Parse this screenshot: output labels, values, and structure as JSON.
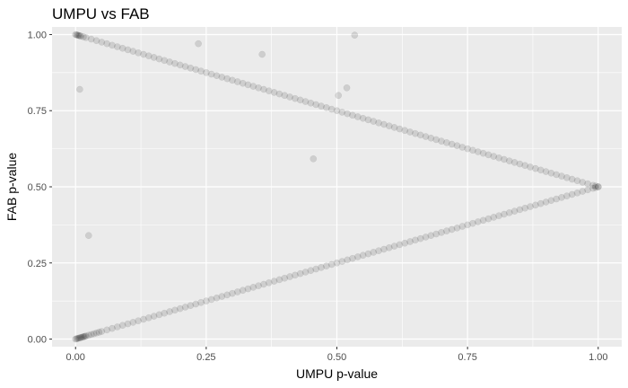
{
  "chart_data": {
    "type": "scatter",
    "title": "UMPU vs FAB",
    "xlabel": "UMPU p-value",
    "ylabel": "FAB p-value",
    "xlim": [
      -0.045,
      1.045
    ],
    "ylim": [
      -0.025,
      1.025
    ],
    "x_ticks": [
      "0.00",
      "0.25",
      "0.50",
      "0.75",
      "1.00"
    ],
    "y_ticks": [
      "0.00",
      "0.25",
      "0.50",
      "0.75",
      "1.00"
    ],
    "x_tick_values": [
      0,
      0.25,
      0.5,
      0.75,
      1.0
    ],
    "y_tick_values": [
      0,
      0.25,
      0.5,
      0.75,
      1.0
    ],
    "grid": true,
    "point_color": "#000000",
    "point_alpha": 0.12,
    "background_color": "#ebebeb",
    "grid_color": "#ffffff",
    "series": [
      {
        "pattern": "upper-line",
        "relation": "FAB = 1 - UMPU/2",
        "x": [
          0.0,
          0.002,
          0.004,
          0.006,
          0.008,
          0.01,
          0.015,
          0.02,
          0.03,
          0.04,
          0.05,
          0.06,
          0.07,
          0.08,
          0.09,
          0.1,
          0.11,
          0.12,
          0.13,
          0.14,
          0.15,
          0.16,
          0.17,
          0.18,
          0.19,
          0.2,
          0.21,
          0.22,
          0.23,
          0.24,
          0.25,
          0.26,
          0.27,
          0.28,
          0.29,
          0.3,
          0.31,
          0.32,
          0.33,
          0.34,
          0.35,
          0.36,
          0.37,
          0.38,
          0.39,
          0.4,
          0.41,
          0.42,
          0.43,
          0.44,
          0.45,
          0.46,
          0.47,
          0.48,
          0.49,
          0.5,
          0.51,
          0.52,
          0.53,
          0.54,
          0.55,
          0.56,
          0.57,
          0.58,
          0.59,
          0.6,
          0.61,
          0.62,
          0.63,
          0.64,
          0.65,
          0.66,
          0.67,
          0.68,
          0.69,
          0.7,
          0.71,
          0.72,
          0.73,
          0.74,
          0.75,
          0.76,
          0.77,
          0.78,
          0.79,
          0.8,
          0.81,
          0.82,
          0.83,
          0.84,
          0.85,
          0.86,
          0.87,
          0.88,
          0.89,
          0.9,
          0.91,
          0.92,
          0.93,
          0.94,
          0.95,
          0.96,
          0.97,
          0.98,
          0.99,
          0.995,
          1.0
        ],
        "y": [
          1.0,
          0.999,
          0.998,
          0.997,
          0.996,
          0.995,
          0.9925,
          0.99,
          0.985,
          0.98,
          0.975,
          0.97,
          0.965,
          0.96,
          0.955,
          0.95,
          0.945,
          0.94,
          0.935,
          0.93,
          0.925,
          0.92,
          0.915,
          0.91,
          0.905,
          0.9,
          0.895,
          0.89,
          0.885,
          0.88,
          0.875,
          0.87,
          0.865,
          0.86,
          0.855,
          0.85,
          0.845,
          0.84,
          0.835,
          0.83,
          0.825,
          0.82,
          0.815,
          0.81,
          0.805,
          0.8,
          0.795,
          0.79,
          0.785,
          0.78,
          0.775,
          0.77,
          0.765,
          0.76,
          0.755,
          0.75,
          0.745,
          0.74,
          0.735,
          0.73,
          0.725,
          0.72,
          0.715,
          0.71,
          0.705,
          0.7,
          0.695,
          0.69,
          0.685,
          0.68,
          0.675,
          0.67,
          0.665,
          0.66,
          0.655,
          0.65,
          0.645,
          0.64,
          0.635,
          0.63,
          0.625,
          0.62,
          0.615,
          0.61,
          0.605,
          0.6,
          0.595,
          0.59,
          0.585,
          0.58,
          0.575,
          0.57,
          0.565,
          0.56,
          0.555,
          0.55,
          0.545,
          0.54,
          0.535,
          0.53,
          0.525,
          0.52,
          0.515,
          0.51,
          0.505,
          0.5025,
          0.5
        ]
      },
      {
        "pattern": "lower-line",
        "relation": "FAB = UMPU/2",
        "x": [
          0.0,
          0.002,
          0.004,
          0.006,
          0.008,
          0.01,
          0.012,
          0.014,
          0.016,
          0.018,
          0.02,
          0.025,
          0.03,
          0.035,
          0.04,
          0.045,
          0.05,
          0.06,
          0.07,
          0.08,
          0.09,
          0.1,
          0.11,
          0.12,
          0.13,
          0.14,
          0.15,
          0.16,
          0.17,
          0.18,
          0.19,
          0.2,
          0.21,
          0.22,
          0.23,
          0.24,
          0.25,
          0.26,
          0.27,
          0.28,
          0.29,
          0.3,
          0.31,
          0.32,
          0.33,
          0.34,
          0.35,
          0.36,
          0.37,
          0.38,
          0.39,
          0.4,
          0.41,
          0.42,
          0.43,
          0.44,
          0.45,
          0.46,
          0.47,
          0.48,
          0.49,
          0.5,
          0.51,
          0.52,
          0.53,
          0.54,
          0.55,
          0.56,
          0.57,
          0.58,
          0.59,
          0.6,
          0.61,
          0.62,
          0.63,
          0.64,
          0.65,
          0.66,
          0.67,
          0.68,
          0.69,
          0.7,
          0.71,
          0.72,
          0.73,
          0.74,
          0.75,
          0.76,
          0.77,
          0.78,
          0.79,
          0.8,
          0.81,
          0.82,
          0.83,
          0.84,
          0.85,
          0.86,
          0.87,
          0.88,
          0.89,
          0.9,
          0.91,
          0.92,
          0.93,
          0.94,
          0.95,
          0.96,
          0.97,
          0.98,
          0.99,
          0.995,
          1.0
        ],
        "y": [
          0.0,
          0.001,
          0.002,
          0.003,
          0.004,
          0.005,
          0.006,
          0.007,
          0.008,
          0.009,
          0.01,
          0.0125,
          0.015,
          0.0175,
          0.02,
          0.0225,
          0.025,
          0.03,
          0.035,
          0.04,
          0.045,
          0.05,
          0.055,
          0.06,
          0.065,
          0.07,
          0.075,
          0.08,
          0.085,
          0.09,
          0.095,
          0.1,
          0.105,
          0.11,
          0.115,
          0.12,
          0.125,
          0.13,
          0.135,
          0.14,
          0.145,
          0.15,
          0.155,
          0.16,
          0.165,
          0.17,
          0.175,
          0.18,
          0.185,
          0.19,
          0.195,
          0.2,
          0.205,
          0.21,
          0.215,
          0.22,
          0.225,
          0.23,
          0.235,
          0.24,
          0.245,
          0.25,
          0.255,
          0.26,
          0.265,
          0.27,
          0.275,
          0.28,
          0.285,
          0.29,
          0.295,
          0.3,
          0.305,
          0.31,
          0.315,
          0.32,
          0.325,
          0.33,
          0.335,
          0.34,
          0.345,
          0.35,
          0.355,
          0.36,
          0.365,
          0.37,
          0.375,
          0.38,
          0.385,
          0.39,
          0.395,
          0.4,
          0.405,
          0.41,
          0.415,
          0.42,
          0.425,
          0.43,
          0.435,
          0.44,
          0.445,
          0.45,
          0.455,
          0.46,
          0.465,
          0.47,
          0.475,
          0.48,
          0.485,
          0.49,
          0.495,
          0.4975,
          0.5
        ]
      },
      {
        "pattern": "outliers",
        "x": [
          0.008,
          0.025,
          0.235,
          0.357,
          0.455,
          0.503,
          0.519,
          0.534
        ],
        "y": [
          0.82,
          0.34,
          0.97,
          0.935,
          0.592,
          0.8,
          0.825,
          0.998
        ]
      }
    ]
  }
}
